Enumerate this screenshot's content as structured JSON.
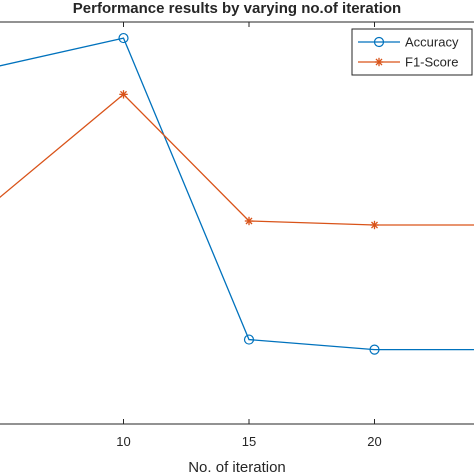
{
  "chart_data": {
    "type": "line",
    "title": "Performance results by varying no.of iteration",
    "xlabel": "No. of iteration",
    "ylabel": "",
    "x": [
      5,
      10,
      15,
      20,
      25
    ],
    "x_ticks": [
      10,
      15,
      20
    ],
    "xlim": [
      5,
      25
    ],
    "ylim": [
      0,
      100
    ],
    "grid": false,
    "legend_position": "top-right",
    "series": [
      {
        "name": "Accuracy",
        "color": "#0072BD",
        "marker": "circle",
        "values": [
          89,
          96,
          21,
          18.5,
          18.5
        ]
      },
      {
        "name": "F1-Score",
        "color": "#D95319",
        "marker": "asterisk",
        "values": [
          56,
          82,
          50.5,
          49.5,
          49.5
        ]
      }
    ]
  }
}
